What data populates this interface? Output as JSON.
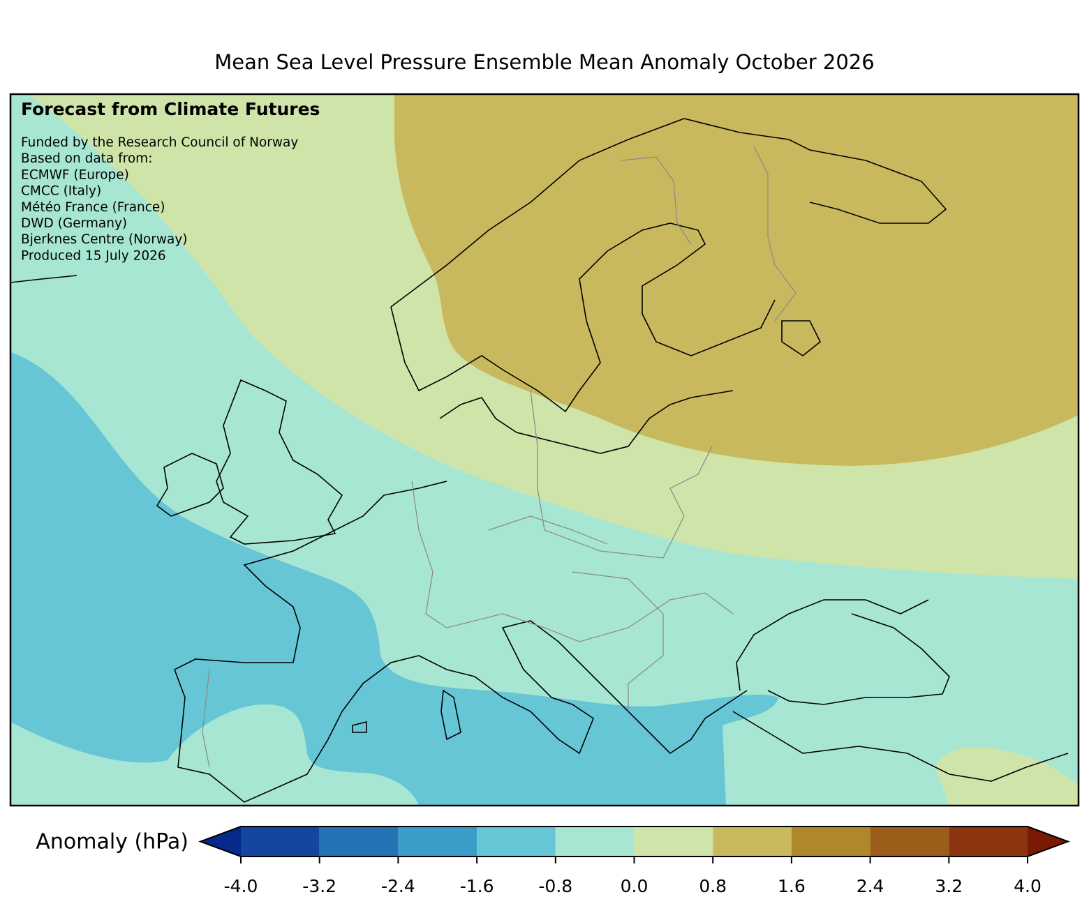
{
  "title": "Mean Sea Level Pressure Ensemble Mean Anomaly October 2026",
  "annotation": {
    "heading": "Forecast from Climate Futures",
    "lines": [
      "Funded by the Research Council of Norway",
      "Based on data from:",
      "ECMWF (Europe)",
      "CMCC (Italy)",
      "Météo France (France)",
      "DWD (Germany)",
      "Bjerknes Centre (Norway)",
      "Produced 15 July 2026"
    ]
  },
  "colorbar": {
    "label": "Anomaly (hPa)",
    "ticks": [
      {
        "value": -4,
        "label": "-4.0"
      },
      {
        "value": -3.2,
        "label": "-3.2"
      },
      {
        "value": -2.4,
        "label": "-2.4"
      },
      {
        "value": -1.6,
        "label": "-1.6"
      },
      {
        "value": -0.8,
        "label": "-0.8"
      },
      {
        "value": 0,
        "label": "0.0"
      },
      {
        "value": 0.8,
        "label": "0.8"
      },
      {
        "value": 1.6,
        "label": "1.6"
      },
      {
        "value": 2.4,
        "label": "2.4"
      },
      {
        "value": 3.2,
        "label": "3.2"
      },
      {
        "value": 4,
        "label": "4.0"
      }
    ],
    "colors": [
      "#1446a0",
      "#2373b5",
      "#3a9dc9",
      "#66c6d6",
      "#a8e6d4",
      "#cfe4a8",
      "#c9b95e",
      "#b0882c",
      "#9c5c1a",
      "#8a3510"
    ],
    "extend_colors": [
      "#052a8a",
      "#7a1a04"
    ]
  }
}
